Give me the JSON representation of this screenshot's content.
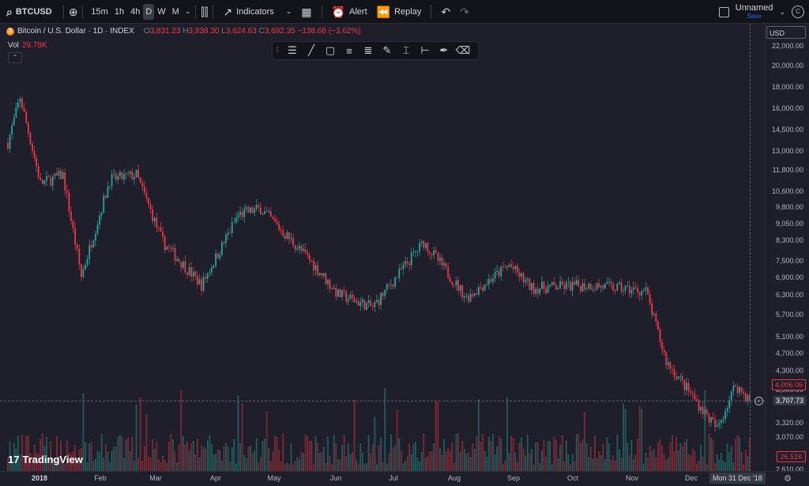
{
  "toolbar": {
    "symbol": "BTCUSD",
    "intervals": [
      "15m",
      "1h",
      "4h",
      "D",
      "W",
      "M"
    ],
    "active_interval": "D",
    "indicators_label": "Indicators",
    "alert_label": "Alert",
    "replay_label": "Replay",
    "layout_name": "Unnamed",
    "save_label": "Save",
    "avatar_letter": "C"
  },
  "legend": {
    "title": "Bitcoin / U.S. Dollar · 1D · INDEX",
    "o_label": "O",
    "o": "3,831.23",
    "h_label": "H",
    "h": "3,838.30",
    "l_label": "L",
    "l": "3,624.63",
    "c_label": "C",
    "c": "3,692.35",
    "change": "−138.68 (−3.62%)",
    "vol_label": "Vol",
    "vol": "29.78K"
  },
  "price_axis": {
    "currency": "USD",
    "ticks": [
      "22,000.00",
      "20,000.00",
      "18,000.00",
      "16,000.00",
      "14,500.00",
      "13,000.00",
      "11,800.00",
      "10,600.00",
      "9,800.00",
      "9,050.00",
      "8,300.00",
      "7,500.00",
      "6,900.00",
      "6,300.00",
      "5,700.00",
      "5,100.00",
      "4,700.00",
      "4,300.00",
      "3,900.00",
      "3,320.00",
      "3,070.00",
      "2,610.00"
    ],
    "last_price": "4,006.06",
    "crosshair_price": "3,707.73",
    "volume_badge": "26.51K"
  },
  "time_axis": {
    "ticks": [
      "2018",
      "Feb",
      "Mar",
      "Apr",
      "May",
      "Jun",
      "Jul",
      "Aug",
      "Sep",
      "Oct",
      "Nov",
      "Dec"
    ],
    "crosshair_date": "Mon 31 Dec '18"
  },
  "watermark": "TradingView",
  "colors": {
    "up": "#26a69a",
    "down": "#f23645",
    "background": "#1e1f2b"
  },
  "chart_data": {
    "type": "candlestick",
    "title": "Bitcoin / U.S. Dollar · 1D · INDEX",
    "y_scale": "log",
    "ylim": [
      2610,
      22000
    ],
    "x_range": [
      "2018-01-01",
      "2018-12-31"
    ],
    "grid": false,
    "approx_close_path": [
      [
        "2018-01-01",
        13500
      ],
      [
        "2018-01-07",
        17000
      ],
      [
        "2018-01-17",
        11000
      ],
      [
        "2018-01-28",
        11500
      ],
      [
        "2018-02-06",
        6900
      ],
      [
        "2018-02-20",
        11200
      ],
      [
        "2018-03-05",
        11500
      ],
      [
        "2018-03-18",
        8200
      ],
      [
        "2018-04-06",
        6600
      ],
      [
        "2018-04-24",
        9400
      ],
      [
        "2018-05-05",
        9700
      ],
      [
        "2018-05-29",
        7500
      ],
      [
        "2018-06-12",
        6300
      ],
      [
        "2018-06-29",
        5900
      ],
      [
        "2018-07-24",
        8200
      ],
      [
        "2018-08-14",
        6200
      ],
      [
        "2018-09-04",
        7300
      ],
      [
        "2018-09-15",
        6500
      ],
      [
        "2018-10-14",
        6600
      ],
      [
        "2018-11-10",
        6400
      ],
      [
        "2018-11-20",
        4500
      ],
      [
        "2018-12-15",
        3200
      ],
      [
        "2018-12-24",
        4000
      ],
      [
        "2018-12-31",
        3692
      ]
    ],
    "last_bar": {
      "date": "2018-12-31",
      "open": 3831.23,
      "high": 3838.3,
      "low": 3624.63,
      "close": 3692.35,
      "volume": "29.78K"
    }
  }
}
